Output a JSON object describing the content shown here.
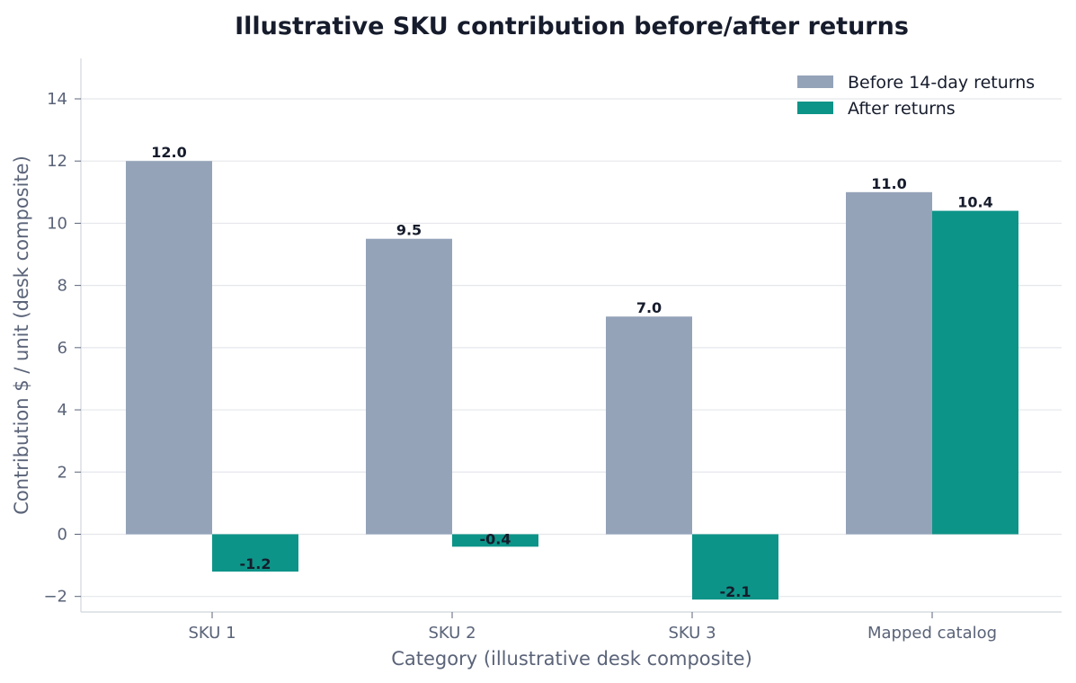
{
  "chart_data": {
    "type": "bar",
    "title": "Illustrative SKU contribution before/after returns",
    "xlabel": "Category (illustrative desk composite)",
    "ylabel": "Contribution $ / unit (desk composite)",
    "categories": [
      "SKU 1",
      "SKU 2",
      "SKU 3",
      "Mapped catalog"
    ],
    "series": [
      {
        "name": "Before 14-day returns",
        "values": [
          12.0,
          9.5,
          7.0,
          11.0
        ],
        "labels": [
          "12.0",
          "9.5",
          "7.0",
          "11.0"
        ],
        "color": "#94a3b8"
      },
      {
        "name": "After returns",
        "values": [
          -1.2,
          -0.4,
          -2.1,
          10.4
        ],
        "labels": [
          "-1.2",
          "-0.4",
          "-2.1",
          "10.4"
        ],
        "color": "#0d9488"
      }
    ],
    "ylim": [
      -2.5,
      15.3
    ],
    "yticks": [
      -2,
      0,
      2,
      4,
      6,
      8,
      10,
      12,
      14
    ],
    "ytick_labels": [
      "−2",
      "0",
      "2",
      "4",
      "6",
      "8",
      "10",
      "12",
      "14"
    ],
    "grid": true,
    "legend_position": "top-right"
  }
}
